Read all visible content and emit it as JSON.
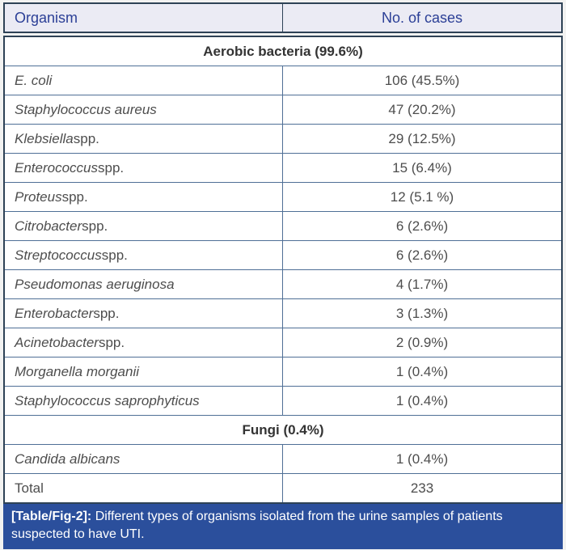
{
  "table": {
    "header": {
      "organism_col": "Organism",
      "cases_col": "No. of cases"
    },
    "rows": [
      {
        "type": "section",
        "label": "Aerobic bacteria (99.6%)"
      },
      {
        "type": "data",
        "italic": "E. coli",
        "regular": "",
        "cases": "106 (45.5%)"
      },
      {
        "type": "data",
        "italic": "Staphylococcus aureus",
        "regular": "",
        "cases": "47 (20.2%)"
      },
      {
        "type": "data",
        "italic": "Klebsiella",
        "regular": " spp.",
        "cases": "29 (12.5%)"
      },
      {
        "type": "data",
        "italic": "Enterococcus",
        "regular": " spp.",
        "cases": "15 (6.4%)"
      },
      {
        "type": "data",
        "italic": "Proteus",
        "regular": " spp.",
        "cases": "12 (5.1 %)"
      },
      {
        "type": "data",
        "italic": "Citrobacter",
        "regular": " spp.",
        "cases": "6 (2.6%)"
      },
      {
        "type": "data",
        "italic": "Streptococcus",
        "regular": " spp.",
        "cases": "6 (2.6%)"
      },
      {
        "type": "data",
        "italic": "Pseudomonas aeruginosa",
        "regular": "",
        "cases": "4 (1.7%)"
      },
      {
        "type": "data",
        "italic": "Enterobacter",
        "regular": " spp.",
        "cases": "3 (1.3%)"
      },
      {
        "type": "data",
        "italic": "Acinetobacter",
        "regular": " spp.",
        "cases": "2 (0.9%)"
      },
      {
        "type": "data",
        "italic": "Morganella morganii",
        "regular": "",
        "cases": "1 (0.4%)"
      },
      {
        "type": "data",
        "italic": "Staphylococcus saprophyticus",
        "regular": "",
        "cases": "1 (0.4%)"
      },
      {
        "type": "section",
        "label": "Fungi (0.4%)"
      },
      {
        "type": "data",
        "italic": "Candida albicans",
        "regular": "",
        "cases": "1 (0.4%)"
      },
      {
        "type": "data",
        "italic": "",
        "regular": "Total",
        "cases": "233"
      }
    ]
  },
  "caption": {
    "tag": "[Table/Fig-2]:",
    "text": " Different types of organisms isolated from the urine samples of patients suspected to have UTI."
  },
  "colors": {
    "header_bg": "#ebebf4",
    "header_text": "#2b3f96",
    "border_dark": "#2e4256",
    "border_light": "#4f6f96",
    "body_text": "#4d4d4d",
    "caption_bg": "#2b4f9c",
    "caption_text": "#ffffff"
  }
}
